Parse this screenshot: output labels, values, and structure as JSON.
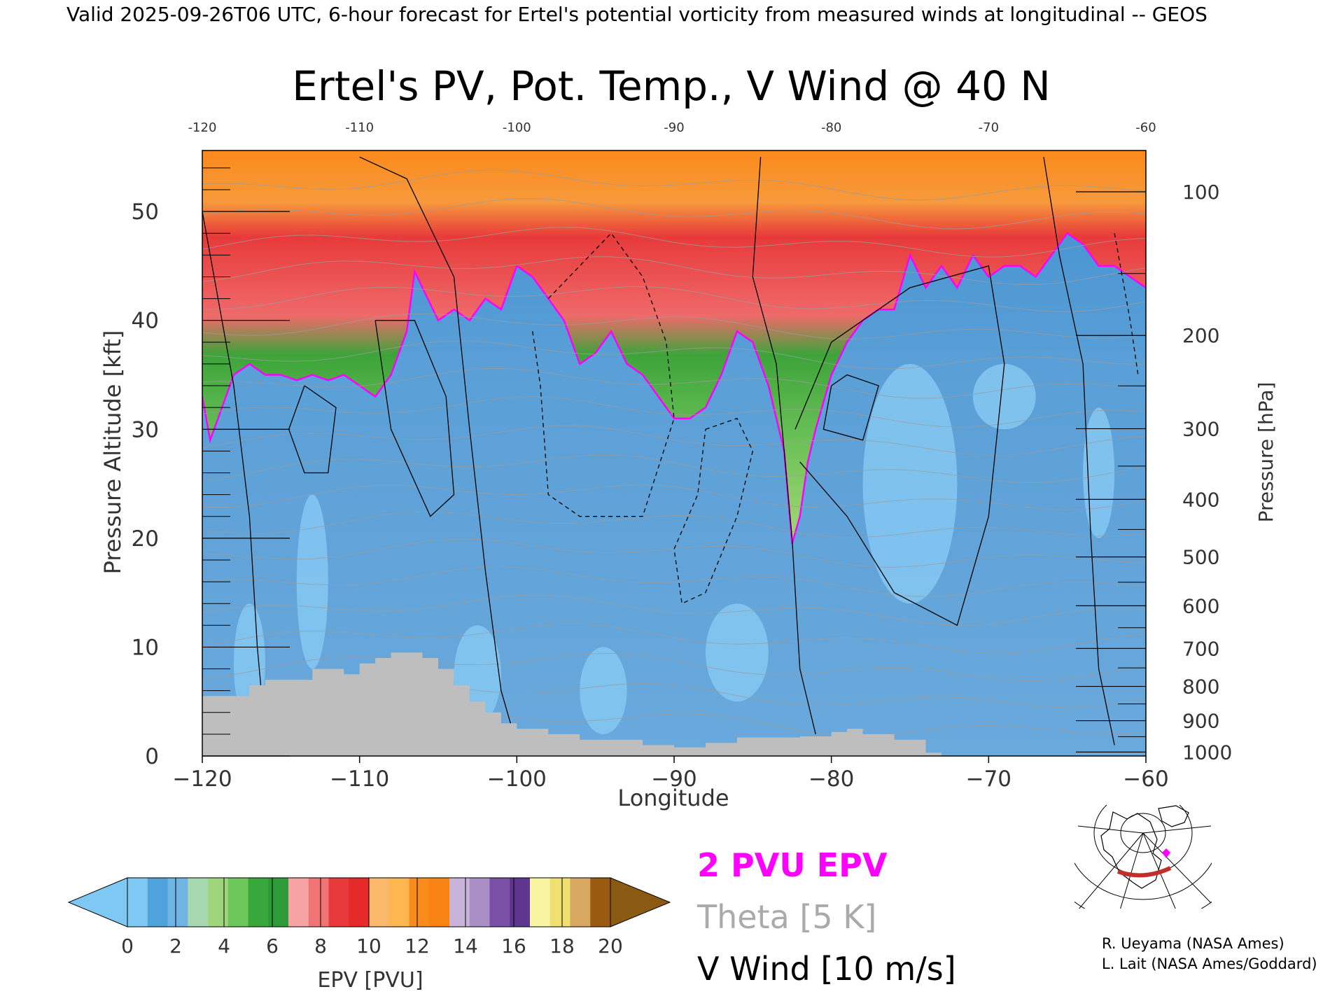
{
  "header": {
    "valid_text": "Valid 2025-09-26T06 UTC, 6-hour forecast for Ertel's potential vorticity from measured winds at longitudinal -- GEOS"
  },
  "chart_data": {
    "type": "heatmap",
    "title": "Ertel's PV, Pot. Temp., V Wind @ 40 N",
    "xlabel": "Longitude",
    "ylabel_left": "Pressure Altitude [kft]",
    "ylabel_right": "Pressure [hPa]",
    "xlim": [
      -120,
      -60
    ],
    "ylim_kft": [
      0,
      55.6
    ],
    "x_ticks_bottom": [
      "-120",
      "-110",
      "-100",
      "-90",
      "-80",
      "-70",
      "-60"
    ],
    "x_ticks_top": [
      "-120",
      "-110",
      "-100",
      "-90",
      "-80",
      "-70",
      "-60"
    ],
    "y_ticks_left": [
      "0",
      "10",
      "20",
      "30",
      "40",
      "50"
    ],
    "y_ticks_right": [
      {
        "label": "100",
        "hpa": 100
      },
      {
        "label": "200",
        "hpa": 200
      },
      {
        "label": "300",
        "hpa": 300
      },
      {
        "label": "400",
        "hpa": 400
      },
      {
        "label": "500",
        "hpa": 500
      },
      {
        "label": "600",
        "hpa": 600
      },
      {
        "label": "700",
        "hpa": 700
      },
      {
        "label": "800",
        "hpa": 800
      },
      {
        "label": "900",
        "hpa": 900
      },
      {
        "label": "1000",
        "hpa": 1000
      }
    ],
    "tropopause_2pvu_kft": [
      [
        -120,
        33
      ],
      [
        -119.5,
        29
      ],
      [
        -119,
        31
      ],
      [
        -118,
        35
      ],
      [
        -117,
        36
      ],
      [
        -116,
        35
      ],
      [
        -115,
        35
      ],
      [
        -114,
        34.5
      ],
      [
        -113,
        35
      ],
      [
        -112,
        34.5
      ],
      [
        -111,
        35
      ],
      [
        -110,
        34
      ],
      [
        -109,
        33
      ],
      [
        -108,
        35
      ],
      [
        -107,
        39
      ],
      [
        -106.5,
        44.5
      ],
      [
        -106,
        43
      ],
      [
        -105,
        40
      ],
      [
        -104,
        41
      ],
      [
        -103,
        40
      ],
      [
        -102,
        42
      ],
      [
        -101,
        41
      ],
      [
        -100,
        45
      ],
      [
        -99,
        44
      ],
      [
        -98,
        42
      ],
      [
        -97,
        40
      ],
      [
        -96,
        36
      ],
      [
        -95,
        37
      ],
      [
        -94,
        39
      ],
      [
        -93,
        36
      ],
      [
        -92,
        35
      ],
      [
        -91,
        33
      ],
      [
        -90,
        31
      ],
      [
        -89,
        31
      ],
      [
        -88,
        32
      ],
      [
        -87,
        35
      ],
      [
        -86,
        39
      ],
      [
        -85,
        38
      ],
      [
        -84,
        34
      ],
      [
        -83,
        28
      ],
      [
        -82.5,
        19.5
      ],
      [
        -82,
        22
      ],
      [
        -81.5,
        27
      ],
      [
        -81,
        30
      ],
      [
        -80,
        35
      ],
      [
        -79,
        38
      ],
      [
        -78,
        40
      ],
      [
        -77,
        41
      ],
      [
        -76,
        41
      ],
      [
        -75,
        46
      ],
      [
        -74,
        43
      ],
      [
        -73,
        45
      ],
      [
        -72,
        43
      ],
      [
        -71,
        46
      ],
      [
        -70,
        44
      ],
      [
        -69,
        45
      ],
      [
        -68,
        45
      ],
      [
        -67,
        44
      ],
      [
        -66,
        46
      ],
      [
        -65,
        48
      ],
      [
        -64,
        47
      ],
      [
        -63,
        45
      ],
      [
        -62,
        45
      ],
      [
        -61,
        44
      ],
      [
        -60,
        43
      ]
    ],
    "terrain_kft": [
      [
        -120,
        5.5
      ],
      [
        -117,
        6.5
      ],
      [
        -116,
        7
      ],
      [
        -113,
        8
      ],
      [
        -111,
        7.5
      ],
      [
        -110,
        8.5
      ],
      [
        -109,
        9
      ],
      [
        -108,
        9.5
      ],
      [
        -107,
        9.5
      ],
      [
        -106,
        9
      ],
      [
        -105,
        8
      ],
      [
        -104,
        6.5
      ],
      [
        -103,
        5
      ],
      [
        -102,
        4
      ],
      [
        -101,
        3
      ],
      [
        -100,
        2.5
      ],
      [
        -98,
        2
      ],
      [
        -96,
        1.5
      ],
      [
        -94,
        1.5
      ],
      [
        -92,
        1.0
      ],
      [
        -90,
        0.8
      ],
      [
        -88,
        1.2
      ],
      [
        -86,
        1.7
      ],
      [
        -84,
        1.7
      ],
      [
        -82,
        1.8
      ],
      [
        -80,
        2.2
      ],
      [
        -79,
        2.5
      ],
      [
        -78,
        2.0
      ],
      [
        -76,
        1.5
      ],
      [
        -74,
        0.3
      ],
      [
        -73,
        0
      ],
      [
        -60,
        0
      ]
    ],
    "colorbar": {
      "label": "EPV [PVU]",
      "ticks": [
        "0",
        "2",
        "4",
        "6",
        "8",
        "10",
        "12",
        "14",
        "16",
        "18",
        "20"
      ],
      "colors": [
        "#7ec8f3",
        "#4fa3dd",
        "#6fb4e2",
        "#a8d8b0",
        "#9fd67b",
        "#6dc65a",
        "#38a83c",
        "#2f9a3a",
        "#f7a3a3",
        "#f07474",
        "#e83a3a",
        "#e62a2a",
        "#fcb86a",
        "#fdb650",
        "#fb8a1c",
        "#f98214",
        "#c8b4d8",
        "#a98fc6",
        "#7a4fa6",
        "#5e3690",
        "#f8f4a2",
        "#f0e070",
        "#d8a860",
        "#9a5a10"
      ]
    },
    "legend": {
      "pv_label": "2 PVU EPV",
      "theta_label": "Theta [5 K]",
      "wind_label": "V Wind [10 m/s]",
      "pv_color": "#ff00ff",
      "theta_color": "#aaaaaa",
      "wind_color": "#000000"
    },
    "colors": {
      "stratosphere_orange": "#fb8a1c",
      "stratosphere_red": "#e83a3a",
      "green_band": "#3da43a",
      "light_green": "#a6d878",
      "troposphere_blue": "#5aa0d6",
      "troposphere_light": "#7fbfec",
      "terrain": "#bebebe"
    }
  },
  "credits": {
    "line1": "R. Ueyama (NASA Ames)",
    "line2": "L. Lait (NASA Ames/Goddard)"
  },
  "inset_map": {
    "icon": "globe-locator-icon",
    "track_color": "#c0302a",
    "marker_color": "#ff00ff"
  }
}
